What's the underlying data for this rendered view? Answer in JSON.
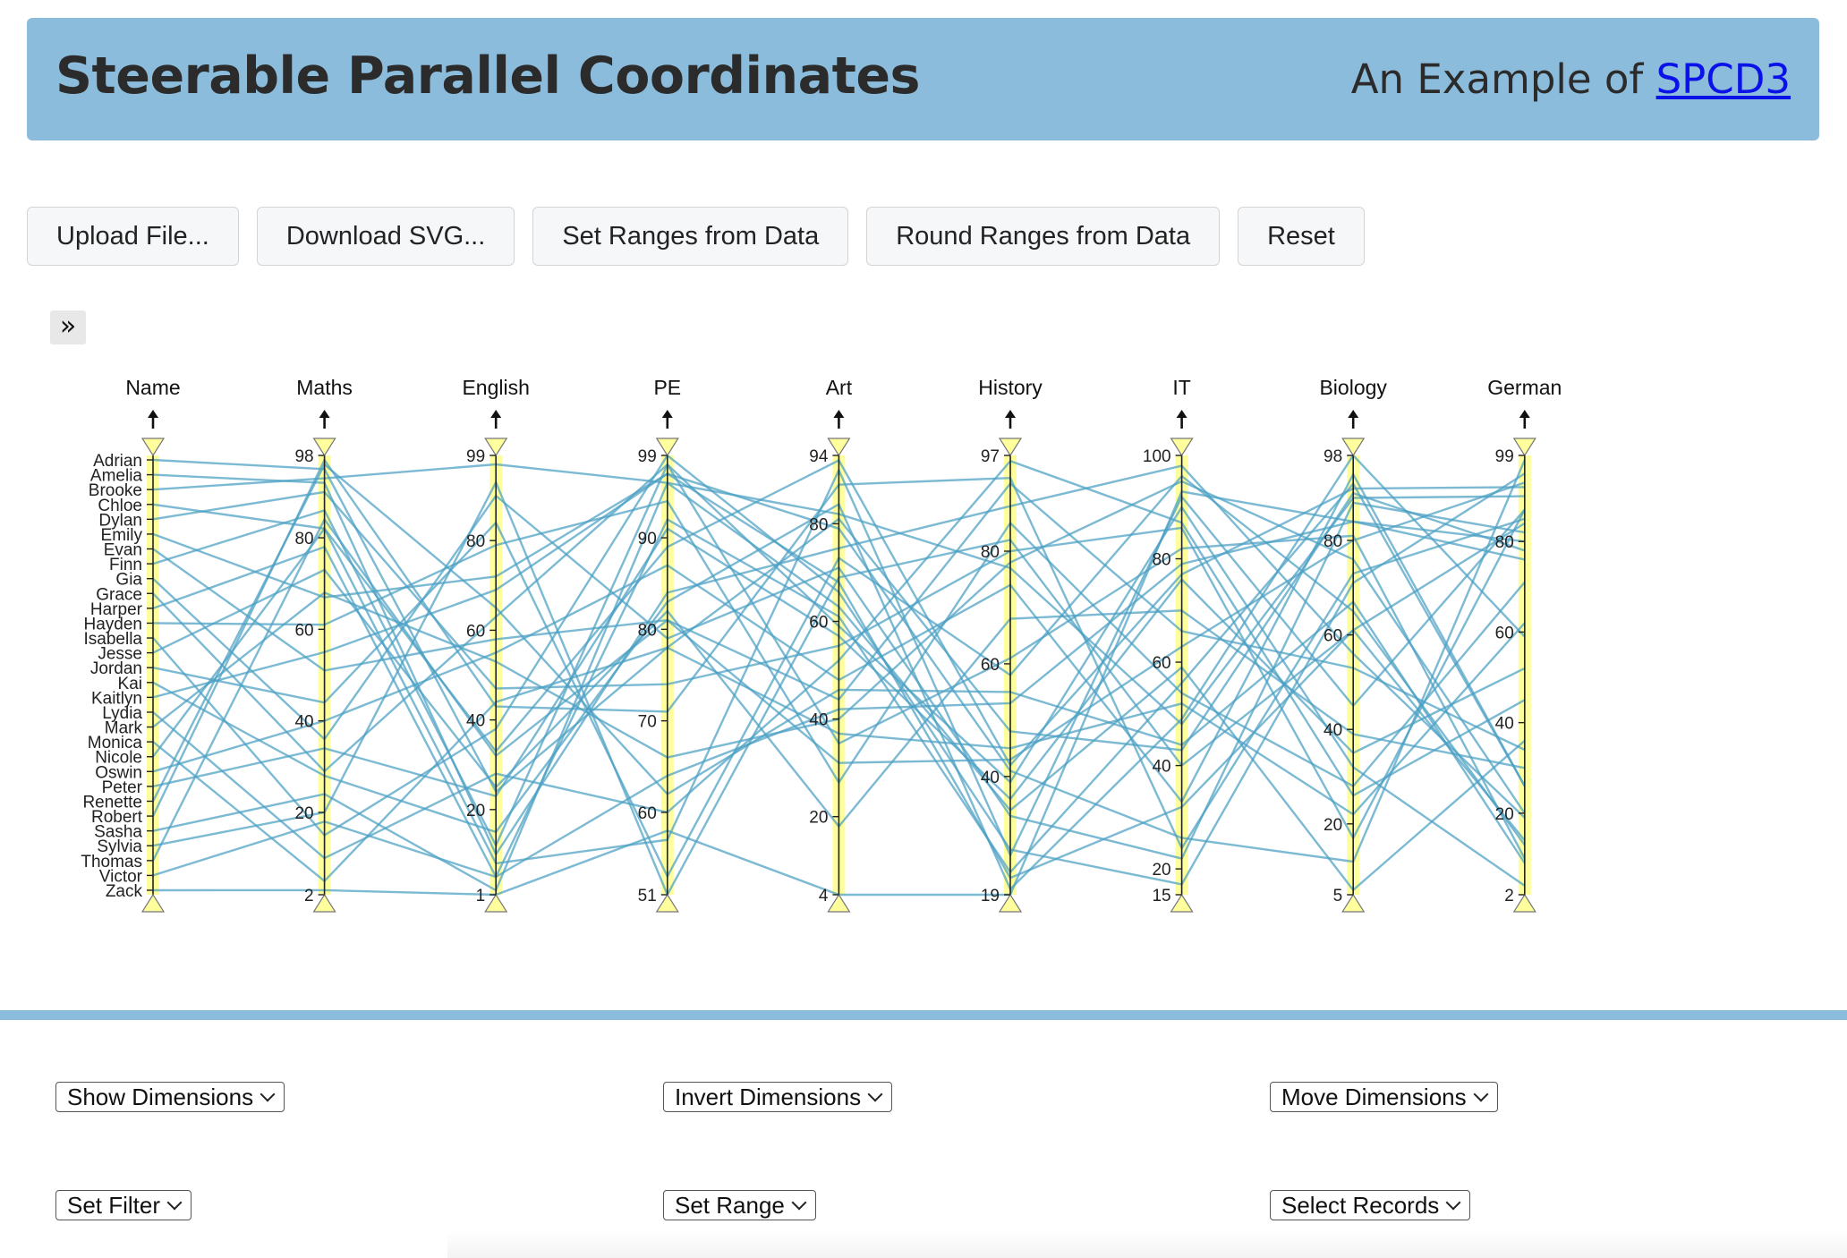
{
  "header": {
    "title": "Steerable Parallel Coordinates",
    "subtitle_prefix": "An Example of",
    "subtitle_link": "SPCD3"
  },
  "toolbar": {
    "upload": "Upload File...",
    "download": "Download SVG...",
    "set_ranges": "Set Ranges from Data",
    "round_ranges": "Round Ranges from Data",
    "reset": "Reset"
  },
  "expand_glyph": "»",
  "colors": {
    "header_bg": "#8cbcdc",
    "line": "#4aa0c4",
    "axis_highlight": "#fffe9c",
    "link": "#0b12e8"
  },
  "chart_data": {
    "type": "parallel-coordinates",
    "dimensions": [
      {
        "name": "Name",
        "type": "categorical",
        "ticks": [
          "Adrian",
          "Amelia",
          "Brooke",
          "Chloe",
          "Dylan",
          "Emily",
          "Evan",
          "Finn",
          "Gia",
          "Grace",
          "Harper",
          "Hayden",
          "Isabella",
          "Jesse",
          "Jordan",
          "Kai",
          "Kaitlyn",
          "Lydia",
          "Mark",
          "Monica",
          "Nicole",
          "Oswin",
          "Peter",
          "Renette",
          "Robert",
          "Sasha",
          "Sylvia",
          "Thomas",
          "Victor",
          "Zack"
        ]
      },
      {
        "name": "Maths",
        "min": 2,
        "max": 98,
        "ticks": [
          98,
          80,
          60,
          40,
          20,
          2
        ]
      },
      {
        "name": "English",
        "min": 1,
        "max": 99,
        "ticks": [
          99,
          80,
          60,
          40,
          20,
          1
        ]
      },
      {
        "name": "PE",
        "min": 51,
        "max": 99,
        "ticks": [
          99,
          90,
          80,
          70,
          60,
          51
        ]
      },
      {
        "name": "Art",
        "min": 4,
        "max": 94,
        "ticks": [
          94,
          80,
          60,
          40,
          20,
          4
        ]
      },
      {
        "name": "History",
        "min": 19,
        "max": 97,
        "ticks": [
          97,
          80,
          60,
          40,
          19
        ]
      },
      {
        "name": "IT",
        "min": 15,
        "max": 100,
        "ticks": [
          100,
          80,
          60,
          40,
          20,
          15
        ]
      },
      {
        "name": "Biology",
        "min": 5,
        "max": 98,
        "ticks": [
          98,
          80,
          60,
          40,
          20,
          5
        ]
      },
      {
        "name": "German",
        "min": 2,
        "max": 99,
        "ticks": [
          99,
          80,
          60,
          40,
          20,
          2
        ]
      }
    ],
    "records": [
      {
        "Name": "Adrian",
        "Maths": 95,
        "English": 24,
        "PE": 78,
        "Art": 81,
        "History": 48,
        "IT": 43,
        "Biology": 90,
        "German": 78
      },
      {
        "Name": "Amelia",
        "Maths": 92,
        "English": 10,
        "PE": 84,
        "Art": 75,
        "History": 88,
        "IT": 98,
        "Biology": 56,
        "German": 19
      },
      {
        "Name": "Brooke",
        "Maths": 93,
        "English": 97,
        "PE": 96,
        "Art": 82,
        "History": 77,
        "IT": 48,
        "Biology": 89,
        "German": 90
      },
      {
        "Name": "Chloe",
        "Maths": 82,
        "English": 33,
        "PE": 89,
        "Art": 93,
        "History": 42,
        "IT": 77,
        "Biology": 91,
        "German": 92
      },
      {
        "Name": "Dylan",
        "Maths": 90,
        "English": 47,
        "PE": 74,
        "Art": 55,
        "History": 80,
        "IT": 86,
        "Biology": 17,
        "German": 87
      },
      {
        "Name": "Emily",
        "Maths": 67,
        "English": 72,
        "PE": 97,
        "Art": 68,
        "History": 22,
        "IT": 32,
        "Biology": 61,
        "German": 84
      },
      {
        "Name": "Evan",
        "Maths": 51,
        "English": 58,
        "PE": 81,
        "Art": 44,
        "History": 92,
        "IT": 66,
        "Biology": 53,
        "German": 34
      },
      {
        "Name": "Finn",
        "Maths": 86,
        "English": 12,
        "PE": 98,
        "Art": 35,
        "History": 61,
        "IT": 82,
        "Biology": 81,
        "German": 10
      },
      {
        "Name": "Gia",
        "Maths": 36,
        "English": 90,
        "PE": 79,
        "Art": 71,
        "History": 33,
        "IT": 22,
        "Biology": 88,
        "German": 82
      },
      {
        "Name": "Grace",
        "Maths": 29,
        "English": 63,
        "PE": 98,
        "Art": 59,
        "History": 39,
        "IT": 90,
        "Biology": 32,
        "German": 4
      },
      {
        "Name": "Harper",
        "Maths": 78,
        "English": 5,
        "PE": 64,
        "Art": 42,
        "History": 53,
        "IT": 79,
        "Biology": 84,
        "German": 76
      },
      {
        "Name": "Hayden",
        "Maths": 61,
        "English": 79,
        "PE": 94,
        "Art": 27,
        "History": 85,
        "IT": 54,
        "Biology": 28,
        "German": 71
      },
      {
        "Name": "Isabella",
        "Maths": 15,
        "English": 38,
        "PE": 99,
        "Art": 66,
        "History": 27,
        "IT": 17,
        "Biology": 71,
        "German": 95
      },
      {
        "Name": "Jesse",
        "Maths": 73,
        "English": 25,
        "PE": 82,
        "Art": 18,
        "History": 68,
        "IT": 70,
        "Biology": 39,
        "German": 30
      },
      {
        "Name": "Jordan",
        "Maths": 44,
        "English": 84,
        "PE": 53,
        "Art": 73,
        "History": 58,
        "IT": 96,
        "Biology": 65,
        "German": 13
      },
      {
        "Name": "Kai",
        "Maths": 28,
        "English": 15,
        "PE": 83,
        "Art": 84,
        "History": 20,
        "IT": 49,
        "Biology": 98,
        "German": 59
      },
      {
        "Name": "Kaitlyn",
        "Maths": 55,
        "English": 69,
        "PE": 97,
        "Art": 79,
        "History": 41,
        "IT": 26,
        "Biology": 12,
        "German": 98
      },
      {
        "Name": "Lydia",
        "Maths": 10,
        "English": 28,
        "PE": 60,
        "Art": 52,
        "History": 96,
        "IT": 87,
        "Biology": 26,
        "German": 45
      },
      {
        "Name": "Mark",
        "Maths": 68,
        "English": 53,
        "PE": 66,
        "Art": 40,
        "History": 78,
        "IT": 95,
        "Biology": 76,
        "German": 20
      },
      {
        "Name": "Monica",
        "Maths": 5,
        "English": 44,
        "PE": 78,
        "Art": 37,
        "History": 45,
        "IT": 52,
        "Biology": 22,
        "German": 62
      },
      {
        "Name": "Nicole",
        "Maths": 82,
        "English": 8,
        "PE": 57,
        "Art": 91,
        "History": 26,
        "IT": 92,
        "Biology": 45,
        "German": 87
      },
      {
        "Name": "Oswin",
        "Maths": 40,
        "English": 55,
        "PE": 87,
        "Art": 48,
        "History": 74,
        "IT": 33,
        "Biology": 94,
        "German": 26
      },
      {
        "Name": "Peter",
        "Maths": 34,
        "English": 23,
        "PE": 91,
        "Art": 57,
        "History": 36,
        "IT": 76,
        "Biology": 35,
        "German": 52
      },
      {
        "Name": "Renette",
        "Maths": 96,
        "English": 65,
        "PE": 62,
        "Art": 46,
        "History": 55,
        "IT": 44,
        "Biology": 67,
        "German": 9
      },
      {
        "Name": "Robert",
        "Maths": 97,
        "English": 43,
        "PE": 71,
        "Art": 88,
        "History": 93,
        "IT": 24,
        "Biology": 73,
        "German": 85
      },
      {
        "Name": "Sasha",
        "Maths": 24,
        "English": 2,
        "PE": 96,
        "Art": 63,
        "History": 34,
        "IT": 59,
        "Biology": 6,
        "German": 36
      },
      {
        "Name": "Sylvia",
        "Maths": 20,
        "English": 93,
        "PE": 51,
        "Art": 69,
        "History": 82,
        "IT": 40,
        "Biology": 61,
        "German": 14
      },
      {
        "Name": "Thomas",
        "Maths": 84,
        "English": 32,
        "PE": 81,
        "Art": 31,
        "History": 43,
        "IT": 63,
        "Biology": 80,
        "German": 93
      },
      {
        "Name": "Victor",
        "Maths": 18,
        "English": 5,
        "PE": 92,
        "Art": 61,
        "History": 23,
        "IT": 56,
        "Biology": 92,
        "German": 26
      },
      {
        "Name": "Zack",
        "Maths": 3,
        "English": 1,
        "PE": 58,
        "Art": 4,
        "History": 19,
        "IT": 93,
        "Biology": 84,
        "German": 80
      }
    ]
  },
  "controls": {
    "show_dimensions": "Show Dimensions",
    "invert_dimensions": "Invert Dimensions",
    "move_dimensions": "Move Dimensions",
    "set_filter": "Set Filter",
    "set_range": "Set Range",
    "select_records": "Select Records"
  }
}
